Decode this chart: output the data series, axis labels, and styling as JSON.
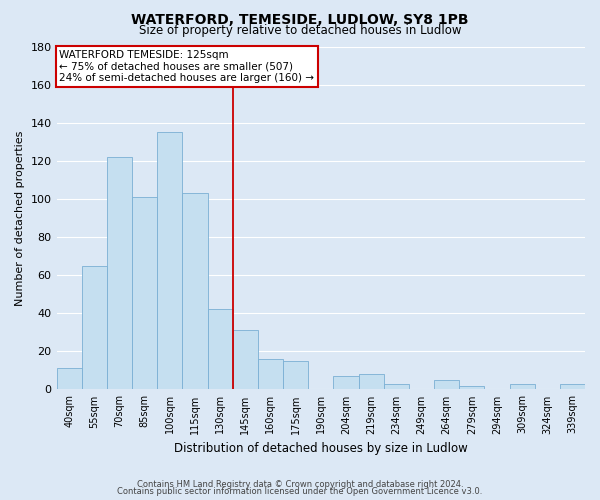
{
  "title": "WATERFORD, TEMESIDE, LUDLOW, SY8 1PB",
  "subtitle": "Size of property relative to detached houses in Ludlow",
  "xlabel": "Distribution of detached houses by size in Ludlow",
  "ylabel": "Number of detached properties",
  "bar_color": "#c5dff0",
  "bar_edge_color": "#7aafd4",
  "background_color": "#dce8f5",
  "grid_color": "#ffffff",
  "vline_color": "#cc0000",
  "categories": [
    "40sqm",
    "55sqm",
    "70sqm",
    "85sqm",
    "100sqm",
    "115sqm",
    "130sqm",
    "145sqm",
    "160sqm",
    "175sqm",
    "190sqm",
    "204sqm",
    "219sqm",
    "234sqm",
    "249sqm",
    "264sqm",
    "279sqm",
    "294sqm",
    "309sqm",
    "324sqm",
    "339sqm"
  ],
  "values": [
    11,
    65,
    122,
    101,
    135,
    103,
    42,
    31,
    16,
    15,
    0,
    7,
    8,
    3,
    0,
    5,
    2,
    0,
    3,
    0,
    3
  ],
  "annotation_title": "WATERFORD TEMESIDE: 125sqm",
  "annotation_line1": "← 75% of detached houses are smaller (507)",
  "annotation_line2": "24% of semi-detached houses are larger (160) →",
  "annotation_box_color": "white",
  "annotation_box_edge": "#cc0000",
  "footer1": "Contains HM Land Registry data © Crown copyright and database right 2024.",
  "footer2": "Contains public sector information licensed under the Open Government Licence v3.0.",
  "ylim": [
    0,
    180
  ],
  "yticks": [
    0,
    20,
    40,
    60,
    80,
    100,
    120,
    140,
    160,
    180
  ],
  "vline_pos": 6.5
}
